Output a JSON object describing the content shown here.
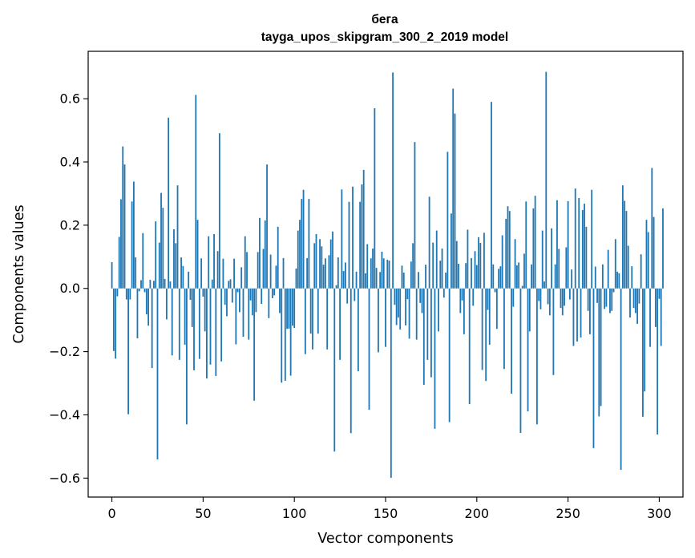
{
  "chart_data": {
    "type": "bar",
    "title": "бега",
    "subtitle": "tayga_upos_skipgram_300_2_2019 model",
    "xlabel": "Vector components",
    "ylabel": "Components values",
    "xlim": [
      -13,
      313
    ],
    "ylim": [
      -0.66,
      0.75
    ],
    "xticks": [
      0,
      50,
      100,
      150,
      200,
      250,
      300
    ],
    "xtick_labels": [
      "0",
      "50",
      "100",
      "150",
      "200",
      "250",
      "300"
    ],
    "yticks": [
      -0.6,
      -0.4,
      -0.2,
      0.0,
      0.2,
      0.4,
      0.6
    ],
    "ytick_labels": [
      "−0.6",
      "−0.4",
      "−0.2",
      "0.0",
      "0.2",
      "0.4",
      "0.6"
    ],
    "bar_color": "#1f77b4",
    "bar_width": 0.8,
    "values": [
      0.083,
      -0.198,
      -0.222,
      -0.025,
      0.163,
      0.282,
      0.449,
      0.392,
      -0.035,
      -0.398,
      -0.035,
      0.275,
      0.338,
      0.098,
      -0.158,
      -0.009,
      0.026,
      0.175,
      -0.012,
      -0.082,
      -0.118,
      0.027,
      -0.252,
      0.024,
      0.212,
      -0.541,
      0.145,
      0.302,
      0.255,
      0.03,
      -0.098,
      0.54,
      0.022,
      -0.212,
      0.187,
      0.143,
      0.326,
      -0.226,
      0.098,
      0.071,
      -0.178,
      -0.43,
      0.053,
      -0.036,
      -0.122,
      -0.259,
      0.612,
      0.217,
      -0.223,
      0.095,
      -0.026,
      -0.136,
      -0.285,
      0.165,
      -0.241,
      0.028,
      0.172,
      -0.277,
      0.118,
      0.491,
      -0.231,
      0.094,
      -0.052,
      -0.088,
      0.024,
      0.029,
      -0.045,
      0.094,
      -0.177,
      -0.012,
      -0.075,
      0.067,
      -0.153,
      0.165,
      0.115,
      -0.162,
      -0.038,
      -0.085,
      -0.355,
      -0.075,
      0.115,
      0.223,
      -0.049,
      0.125,
      0.215,
      0.392,
      -0.094,
      0.107,
      -0.031,
      -0.022,
      0.072,
      0.195,
      -0.078,
      -0.298,
      0.096,
      -0.292,
      -0.128,
      -0.127,
      -0.276,
      -0.118,
      -0.125,
      0.063,
      0.183,
      0.217,
      0.283,
      0.312,
      -0.208,
      0.096,
      0.283,
      -0.143,
      -0.193,
      0.143,
      0.172,
      -0.143,
      0.156,
      0.133,
      0.075,
      0.095,
      -0.193,
      0.105,
      0.155,
      0.18,
      -0.516,
      0.01,
      0.098,
      -0.226,
      0.313,
      0.055,
      0.082,
      -0.048,
      0.274,
      -0.458,
      0.322,
      -0.04,
      0.053,
      -0.262,
      0.274,
      0.329,
      0.375,
      0.048,
      0.14,
      -0.384,
      0.095,
      0.126,
      0.57,
      0.065,
      -0.202,
      0.052,
      0.116,
      0.095,
      -0.185,
      0.091,
      0.088,
      -0.599,
      0.683,
      -0.052,
      -0.116,
      -0.092,
      -0.13,
      0.072,
      0.05,
      -0.117,
      -0.034,
      -0.159,
      0.085,
      0.143,
      0.463,
      -0.162,
      0.052,
      -0.046,
      -0.078,
      -0.305,
      0.075,
      -0.226,
      0.29,
      -0.281,
      0.145,
      -0.444,
      0.183,
      -0.136,
      0.088,
      0.126,
      -0.029,
      0.05,
      0.432,
      -0.423,
      0.237,
      0.632,
      0.553,
      0.15,
      0.078,
      -0.078,
      -0.038,
      -0.145,
      0.08,
      0.186,
      -0.366,
      0.096,
      -0.055,
      0.118,
      0.074,
      0.162,
      0.144,
      -0.258,
      0.176,
      -0.293,
      -0.068,
      -0.178,
      0.59,
      0.076,
      -0.012,
      -0.128,
      0.062,
      0.07,
      0.168,
      -0.255,
      0.22,
      0.26,
      0.245,
      -0.333,
      -0.058,
      0.156,
      0.073,
      0.082,
      -0.457,
      0.008,
      0.11,
      0.275,
      -0.389,
      -0.136,
      0.076,
      0.253,
      0.293,
      -0.43,
      -0.04,
      -0.066,
      0.183,
      0.022,
      0.685,
      -0.05,
      -0.085,
      0.19,
      -0.274,
      0.076,
      0.279,
      0.125,
      -0.062,
      -0.085,
      -0.055,
      0.13,
      0.276,
      -0.035,
      0.06,
      -0.182,
      0.316,
      -0.168,
      0.286,
      -0.155,
      0.248,
      0.268,
      0.195,
      -0.071,
      -0.145,
      0.312,
      -0.505,
      0.069,
      -0.046,
      -0.405,
      -0.372,
      0.076,
      -0.065,
      -0.058,
      0.122,
      -0.078,
      -0.071,
      -0.012,
      0.156,
      0.053,
      0.048,
      -0.574,
      0.326,
      0.277,
      0.245,
      0.135,
      -0.092,
      0.07,
      -0.062,
      -0.078,
      -0.112,
      -0.048,
      0.108,
      -0.406,
      -0.326,
      0.217,
      0.178,
      -0.185,
      0.381,
      0.226,
      -0.122,
      -0.462,
      -0.033,
      -0.182,
      0.253
    ]
  }
}
